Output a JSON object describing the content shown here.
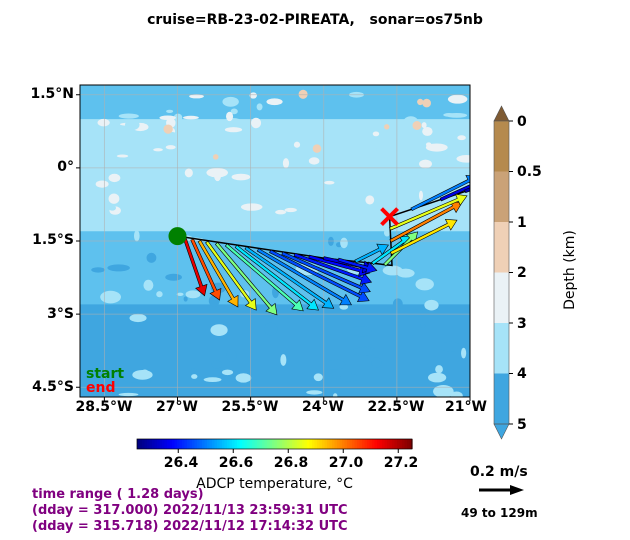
{
  "title": "cruise=RB-23-02-PIREATA,   sonar=os75nb",
  "chart_data": {
    "type": "quiver-map",
    "xaxis": {
      "range": [
        -29,
        -21
      ],
      "ticks": [
        -28.5,
        -27,
        -25.5,
        -24,
        -22.5,
        -21
      ],
      "tick_labels": [
        "28.5°W",
        "27°W",
        "25.5°W",
        "24°W",
        "22.5°W",
        "21°W"
      ]
    },
    "yaxis": {
      "range": [
        -4.7,
        1.7
      ],
      "ticks": [
        1.5,
        0,
        -1.5,
        -3,
        -4.5
      ],
      "tick_labels": [
        "1.5°N",
        "0°",
        "1.5°S",
        "3°S",
        "4.5°S"
      ]
    },
    "grid": true,
    "depth_colorbar": {
      "label": "Depth (km)",
      "ticks": [
        0,
        0.5,
        1,
        2,
        3,
        4,
        5
      ],
      "tick_labels": [
        "0",
        "0.5",
        "1",
        "2",
        "3",
        "4",
        "5"
      ],
      "colors": [
        "#b58a4e",
        "#caa277",
        "#efd0b6",
        "#eaf2f6",
        "#a6e3f8",
        "#5ec1ee",
        "#3fa6e0"
      ]
    },
    "temperature_colorbar": {
      "label": "ADCP temperature, °C",
      "range": [
        26.25,
        27.25
      ],
      "ticks": [
        26.4,
        26.6,
        26.8,
        27.0,
        27.2
      ],
      "tick_labels": [
        "26.4",
        "26.6",
        "26.8",
        "27.0",
        "27.2"
      ]
    },
    "track": [
      {
        "lon": -27.0,
        "lat": -1.4
      },
      {
        "lon": -24.0,
        "lat": -1.85
      },
      {
        "lon": -22.6,
        "lat": -2.0
      },
      {
        "lon": -22.65,
        "lat": -1.0
      },
      {
        "lon": -21.0,
        "lat": -0.45
      }
    ],
    "start": {
      "lon": -27.0,
      "lat": -1.4,
      "label": "start",
      "color": "#008000"
    },
    "end": {
      "lon": -22.65,
      "lat": -1.0,
      "label": "end",
      "color": "#ff0000"
    },
    "vectors": [
      {
        "lon": -26.85,
        "lat": -1.45,
        "u": 0.18,
        "v": -0.52,
        "temp": 27.15
      },
      {
        "lon": -26.7,
        "lat": -1.47,
        "u": 0.25,
        "v": -0.55,
        "temp": 27.05
      },
      {
        "lon": -26.55,
        "lat": -1.5,
        "u": 0.35,
        "v": -0.6,
        "temp": 26.95
      },
      {
        "lon": -26.4,
        "lat": -1.52,
        "u": 0.45,
        "v": -0.62,
        "temp": 26.85
      },
      {
        "lon": -26.2,
        "lat": -1.55,
        "u": 0.55,
        "v": -0.65,
        "temp": 26.75
      },
      {
        "lon": -26.0,
        "lat": -1.58,
        "u": 0.7,
        "v": -0.6,
        "temp": 26.7
      },
      {
        "lon": -25.8,
        "lat": -1.61,
        "u": 0.75,
        "v": -0.58,
        "temp": 26.6
      },
      {
        "lon": -25.6,
        "lat": -1.64,
        "u": 0.8,
        "v": -0.55,
        "temp": 26.55
      },
      {
        "lon": -25.35,
        "lat": -1.68,
        "u": 0.85,
        "v": -0.5,
        "temp": 26.5
      },
      {
        "lon": -25.1,
        "lat": -1.71,
        "u": 0.9,
        "v": -0.45,
        "temp": 26.45
      },
      {
        "lon": -24.85,
        "lat": -1.75,
        "u": 0.8,
        "v": -0.35,
        "temp": 26.45
      },
      {
        "lon": -24.6,
        "lat": -1.78,
        "u": 0.7,
        "v": -0.25,
        "temp": 26.4
      },
      {
        "lon": -24.3,
        "lat": -1.82,
        "u": 0.55,
        "v": -0.15,
        "temp": 26.38
      },
      {
        "lon": -24.0,
        "lat": -1.85,
        "u": 0.45,
        "v": -0.1,
        "temp": 26.35
      },
      {
        "lon": -23.7,
        "lat": -1.88,
        "u": 0.35,
        "v": -0.1,
        "temp": 26.4
      },
      {
        "lon": -23.35,
        "lat": -1.92,
        "u": 0.3,
        "v": 0.15,
        "temp": 26.55
      },
      {
        "lon": -23.0,
        "lat": -1.96,
        "u": 0.35,
        "v": 0.25,
        "temp": 26.6
      },
      {
        "lon": -22.75,
        "lat": -1.99,
        "u": 0.3,
        "v": 0.3,
        "temp": 26.75
      },
      {
        "lon": -22.62,
        "lat": -1.75,
        "u": 0.6,
        "v": 0.3,
        "temp": 26.9
      },
      {
        "lon": -22.63,
        "lat": -1.5,
        "u": 0.65,
        "v": 0.35,
        "temp": 27.0
      },
      {
        "lon": -22.64,
        "lat": -1.25,
        "u": 0.7,
        "v": 0.3,
        "temp": 26.85
      },
      {
        "lon": -22.2,
        "lat": -0.85,
        "u": 0.6,
        "v": 0.3,
        "temp": 26.5
      },
      {
        "lon": -21.6,
        "lat": -0.65,
        "u": 0.55,
        "v": 0.25,
        "temp": 26.35
      },
      {
        "lon": -21.1,
        "lat": -0.48,
        "u": 0.4,
        "v": 0.15,
        "temp": 26.3
      }
    ],
    "reference_vector": {
      "label": "0.2 m/s",
      "depth_range": "49 to 129m"
    },
    "time_range": [
      "time range ( 1.28 days)",
      "(dday = 317.000) 2022/11/13 23:59:31 UTC",
      "(dday = 315.718) 2022/11/12 17:14:32 UTC"
    ]
  }
}
